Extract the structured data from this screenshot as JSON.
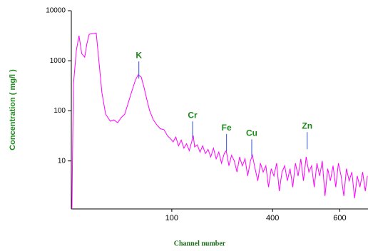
{
  "chart_data": {
    "type": "line",
    "x_label": "Channel number",
    "y_label": "Concentration ( mg/l )",
    "log_y": true,
    "color": "#ff00ff",
    "annotation_color": "#1a8a1a",
    "annotation_line_color": "#3050d0",
    "xlim": [
      -199,
      684
    ],
    "xticks": [
      100,
      400,
      600
    ],
    "ylim": [
      1.1,
      10000
    ],
    "yticks": [
      10,
      100,
      1000,
      10000
    ],
    "x": [
      -197,
      -193,
      -184,
      -176,
      -168,
      -159,
      -153,
      -146,
      -136,
      -125,
      -119,
      -108,
      -97,
      -83,
      -72,
      -61,
      -51,
      -40,
      -30,
      -19,
      -8,
      0,
      9,
      17,
      26,
      34,
      45,
      55,
      66,
      77,
      87,
      98,
      104,
      112,
      120,
      128,
      136,
      144,
      152,
      160,
      164,
      168,
      176,
      184,
      192,
      200,
      208,
      216,
      224,
      232,
      240,
      248,
      256,
      262,
      270,
      278,
      286,
      294,
      302,
      310,
      318,
      326,
      334,
      340,
      348,
      356,
      364,
      372,
      380,
      388,
      396,
      404,
      412,
      420,
      428,
      436,
      444,
      452,
      460,
      468,
      476,
      484,
      492,
      500,
      508,
      516,
      524,
      532,
      540,
      548,
      556,
      564,
      572,
      580,
      588,
      596,
      604,
      612,
      620,
      628,
      636,
      644,
      652,
      660,
      668,
      676,
      682
    ],
    "values": [
      1.14,
      318,
      1630,
      3160,
      1390,
      1180,
      2140,
      3380,
      3480,
      3600,
      1390,
      230,
      86,
      62,
      66,
      58,
      73,
      86,
      141,
      245,
      417,
      525,
      472,
      300,
      166,
      101,
      66,
      53,
      44,
      42,
      32,
      27,
      24,
      30,
      20,
      26,
      18,
      22,
      16,
      25,
      32,
      19,
      21,
      15,
      20,
      14,
      17,
      12,
      18,
      11,
      15,
      9,
      14,
      16,
      8,
      13,
      10,
      6,
      12,
      8,
      11,
      5,
      10,
      13,
      7,
      4,
      9,
      6,
      8,
      3,
      7,
      5,
      9,
      2.5,
      6,
      8,
      4,
      7,
      3,
      9,
      5,
      11,
      4,
      12,
      6,
      8,
      3,
      9,
      5,
      10,
      2,
      7,
      4,
      8,
      3,
      9,
      5,
      2,
      7,
      4,
      6,
      1.8,
      5,
      3,
      6,
      2.5,
      5
    ],
    "annotations": [
      {
        "label": "K",
        "x": 2,
        "y": 1260
      },
      {
        "label": "Cr",
        "x": 162,
        "y": 80
      },
      {
        "label": "Fe",
        "x": 263,
        "y": 45
      },
      {
        "label": "Cu",
        "x": 338,
        "y": 35
      },
      {
        "label": "Zn",
        "x": 503,
        "y": 49
      }
    ]
  }
}
